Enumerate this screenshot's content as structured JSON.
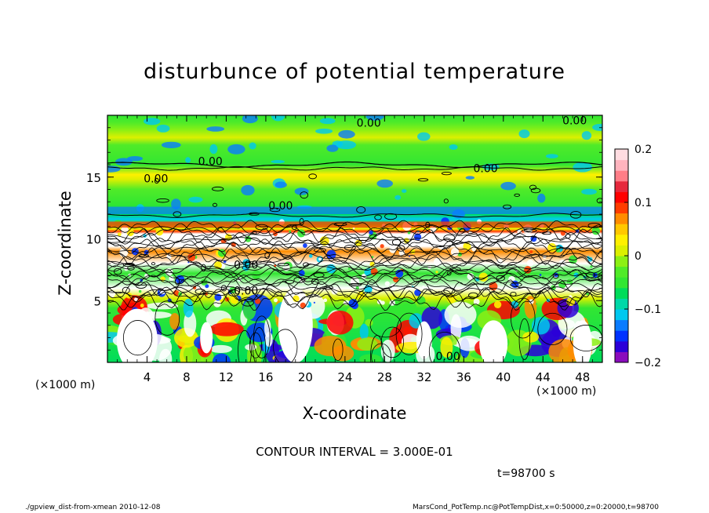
{
  "chart_data": {
    "type": "heatmap",
    "title": "disturbunce of potential temperature",
    "xlabel": "X-coordinate",
    "ylabel": "Z-coordinate",
    "x_unit_label": "(×1000 m)",
    "z_unit_label": "(×1000 m)",
    "xlim": [
      0,
      50
    ],
    "ylim": [
      0,
      20
    ],
    "x_ticks": [
      4,
      8,
      12,
      16,
      20,
      24,
      28,
      32,
      36,
      40,
      44,
      48
    ],
    "y_ticks": [
      5,
      10,
      15
    ],
    "colorbar": {
      "range": [
        -0.2,
        0.2
      ],
      "ticks": [
        "0.2",
        "0.1",
        "0",
        "−0.1",
        "−0.2"
      ],
      "tick_values": [
        0.2,
        0.1,
        0,
        -0.1,
        -0.2
      ],
      "colors": [
        "#8a0cbc",
        "#2b00d8",
        "#0032ff",
        "#0a7cff",
        "#00c8f0",
        "#00d8a8",
        "#00dc5a",
        "#32e632",
        "#50eb28",
        "#8cf014",
        "#dcf000",
        "#fff000",
        "#ffc800",
        "#ff8c00",
        "#ff3c00",
        "#ff0000",
        "#e6283c",
        "#ff7d87",
        "#ffb4be",
        "#ffdce1"
      ]
    },
    "contour_labels": [
      {
        "text": "0.00",
        "x": 26.4,
        "z": 19.4
      },
      {
        "text": "0.00",
        "x": 47.2,
        "z": 19.6
      },
      {
        "text": "0.00",
        "x": 10.4,
        "z": 16.3
      },
      {
        "text": "0.00",
        "x": 38.2,
        "z": 15.7
      },
      {
        "text": "0.00",
        "x": 4.9,
        "z": 14.9
      },
      {
        "text": "0.00",
        "x": 17.5,
        "z": 12.7
      },
      {
        "text": "0.00",
        "x": 14.0,
        "z": 7.9
      },
      {
        "text": "0.00",
        "x": 14.0,
        "z": 5.8
      },
      {
        "text": "0.00",
        "x": 34.4,
        "z": 0.5
      }
    ]
  },
  "contour_interval_text": "CONTOUR INTERVAL = 3.000E-01",
  "time_text": "t=98700 s",
  "footer_left": "./gpview_dist-from-xmean  2010-12-08",
  "footer_right": "MarsCond_PotTemp.nc@PotTempDist,x=0:50000,z=0:20000,t=98700"
}
